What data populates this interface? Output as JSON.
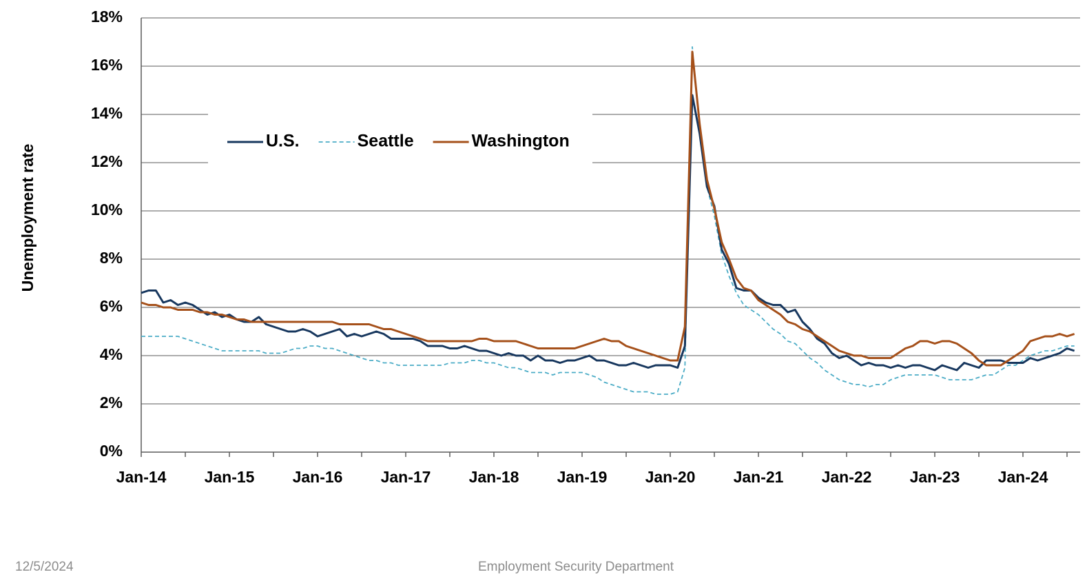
{
  "chart_data": {
    "type": "line",
    "y_label": "Unemployment rate",
    "categories": [
      "Jan-14",
      null,
      null,
      null,
      null,
      null,
      null,
      null,
      null,
      null,
      null,
      null,
      "Jan-15",
      null,
      null,
      null,
      null,
      null,
      null,
      null,
      null,
      null,
      null,
      null,
      "Jan-16",
      null,
      null,
      null,
      null,
      null,
      null,
      null,
      null,
      null,
      null,
      null,
      "Jan-17",
      null,
      null,
      null,
      null,
      null,
      null,
      null,
      null,
      null,
      null,
      null,
      "Jan-18",
      null,
      null,
      null,
      null,
      null,
      null,
      null,
      null,
      null,
      null,
      null,
      "Jan-19",
      null,
      null,
      null,
      null,
      null,
      null,
      null,
      null,
      null,
      null,
      null,
      "Jan-20",
      null,
      null,
      null,
      null,
      null,
      null,
      null,
      null,
      null,
      null,
      null,
      "Jan-21",
      null,
      null,
      null,
      null,
      null,
      null,
      null,
      null,
      null,
      null,
      null,
      "Jan-22",
      null,
      null,
      null,
      null,
      null,
      null,
      null,
      null,
      null,
      null,
      null,
      "Jan-23",
      null,
      null,
      null,
      null,
      null,
      null,
      null,
      null,
      null,
      null,
      null,
      "Jan-24",
      null,
      null,
      null,
      null,
      null,
      null,
      null
    ],
    "series": [
      {
        "name": "U.S.",
        "color": "#17375e",
        "dash": false,
        "values": [
          6.6,
          6.7,
          6.7,
          6.2,
          6.3,
          6.1,
          6.2,
          6.1,
          5.9,
          5.7,
          5.8,
          5.6,
          5.7,
          5.5,
          5.4,
          5.4,
          5.6,
          5.3,
          5.2,
          5.1,
          5.0,
          5.0,
          5.1,
          5.0,
          4.8,
          4.9,
          5.0,
          5.1,
          4.8,
          4.9,
          4.8,
          4.9,
          5.0,
          4.9,
          4.7,
          4.7,
          4.7,
          4.7,
          4.6,
          4.4,
          4.4,
          4.4,
          4.3,
          4.3,
          4.4,
          4.3,
          4.2,
          4.2,
          4.1,
          4.0,
          4.1,
          4.0,
          4.0,
          3.8,
          4.0,
          3.8,
          3.8,
          3.7,
          3.8,
          3.8,
          3.9,
          4.0,
          3.8,
          3.8,
          3.7,
          3.6,
          3.6,
          3.7,
          3.6,
          3.5,
          3.6,
          3.6,
          3.6,
          3.5,
          4.4,
          14.8,
          13.2,
          11.0,
          10.2,
          8.4,
          7.8,
          6.8,
          6.7,
          6.7,
          6.4,
          6.2,
          6.1,
          6.1,
          5.8,
          5.9,
          5.4,
          5.1,
          4.7,
          4.5,
          4.1,
          3.9,
          4.0,
          3.8,
          3.6,
          3.7,
          3.6,
          3.6,
          3.5,
          3.6,
          3.5,
          3.6,
          3.6,
          3.5,
          3.4,
          3.6,
          3.5,
          3.4,
          3.7,
          3.6,
          3.5,
          3.8,
          3.8,
          3.8,
          3.7,
          3.7,
          3.7,
          3.9,
          3.8,
          3.9,
          4.0,
          4.1,
          4.3,
          4.2
        ]
      },
      {
        "name": "Seattle",
        "color": "#4bacc6",
        "dash": true,
        "values": [
          4.8,
          4.8,
          4.8,
          4.8,
          4.8,
          4.8,
          4.7,
          4.6,
          4.5,
          4.4,
          4.3,
          4.2,
          4.2,
          4.2,
          4.2,
          4.2,
          4.2,
          4.1,
          4.1,
          4.1,
          4.2,
          4.3,
          4.3,
          4.4,
          4.4,
          4.3,
          4.3,
          4.2,
          4.1,
          4.0,
          3.9,
          3.8,
          3.8,
          3.7,
          3.7,
          3.6,
          3.6,
          3.6,
          3.6,
          3.6,
          3.6,
          3.6,
          3.7,
          3.7,
          3.7,
          3.8,
          3.8,
          3.7,
          3.7,
          3.6,
          3.5,
          3.5,
          3.4,
          3.3,
          3.3,
          3.3,
          3.2,
          3.3,
          3.3,
          3.3,
          3.3,
          3.2,
          3.1,
          2.9,
          2.8,
          2.7,
          2.6,
          2.5,
          2.5,
          2.5,
          2.4,
          2.4,
          2.4,
          2.5,
          3.5,
          16.8,
          13.5,
          11.0,
          9.8,
          8.2,
          7.3,
          6.6,
          6.1,
          5.9,
          5.7,
          5.4,
          5.1,
          4.9,
          4.6,
          4.5,
          4.2,
          3.9,
          3.7,
          3.4,
          3.2,
          3.0,
          2.9,
          2.8,
          2.8,
          2.7,
          2.8,
          2.8,
          3.0,
          3.1,
          3.2,
          3.2,
          3.2,
          3.2,
          3.2,
          3.1,
          3.0,
          3.0,
          3.0,
          3.0,
          3.1,
          3.2,
          3.2,
          3.4,
          3.6,
          3.6,
          3.8,
          4.0,
          4.1,
          4.2,
          4.2,
          4.3,
          4.4,
          4.4
        ]
      },
      {
        "name": "Washington",
        "color": "#a5501a",
        "dash": false,
        "values": [
          6.2,
          6.1,
          6.1,
          6.0,
          6.0,
          5.9,
          5.9,
          5.9,
          5.8,
          5.8,
          5.7,
          5.7,
          5.6,
          5.5,
          5.5,
          5.4,
          5.4,
          5.4,
          5.4,
          5.4,
          5.4,
          5.4,
          5.4,
          5.4,
          5.4,
          5.4,
          5.4,
          5.3,
          5.3,
          5.3,
          5.3,
          5.3,
          5.2,
          5.1,
          5.1,
          5.0,
          4.9,
          4.8,
          4.7,
          4.6,
          4.6,
          4.6,
          4.6,
          4.6,
          4.6,
          4.6,
          4.7,
          4.7,
          4.6,
          4.6,
          4.6,
          4.6,
          4.5,
          4.4,
          4.3,
          4.3,
          4.3,
          4.3,
          4.3,
          4.3,
          4.4,
          4.5,
          4.6,
          4.7,
          4.6,
          4.6,
          4.4,
          4.3,
          4.2,
          4.1,
          4.0,
          3.9,
          3.8,
          3.8,
          5.2,
          16.6,
          13.6,
          11.3,
          10.1,
          8.7,
          8.0,
          7.2,
          6.8,
          6.7,
          6.3,
          6.1,
          5.9,
          5.7,
          5.4,
          5.3,
          5.1,
          5.0,
          4.8,
          4.6,
          4.4,
          4.2,
          4.1,
          4.0,
          4.0,
          3.9,
          3.9,
          3.9,
          3.9,
          4.1,
          4.3,
          4.4,
          4.6,
          4.6,
          4.5,
          4.6,
          4.6,
          4.5,
          4.3,
          4.1,
          3.8,
          3.6,
          3.6,
          3.6,
          3.8,
          4.0,
          4.2,
          4.6,
          4.7,
          4.8,
          4.8,
          4.9,
          4.8,
          4.9
        ]
      }
    ],
    "ylim": [
      0,
      18
    ],
    "yticks": [
      {
        "value": 0,
        "label": "0%"
      },
      {
        "value": 2,
        "label": "2%"
      },
      {
        "value": 4,
        "label": "4%"
      },
      {
        "value": 6,
        "label": "6%"
      },
      {
        "value": 8,
        "label": "8%"
      },
      {
        "value": 10,
        "label": "10%"
      },
      {
        "value": 12,
        "label": "12%"
      },
      {
        "value": 14,
        "label": "14%"
      },
      {
        "value": 16,
        "label": "16%"
      },
      {
        "value": 18,
        "label": "18%"
      }
    ],
    "grid": true
  },
  "footer": {
    "date": "12/5/2024",
    "organization": "Employment Security Department"
  }
}
